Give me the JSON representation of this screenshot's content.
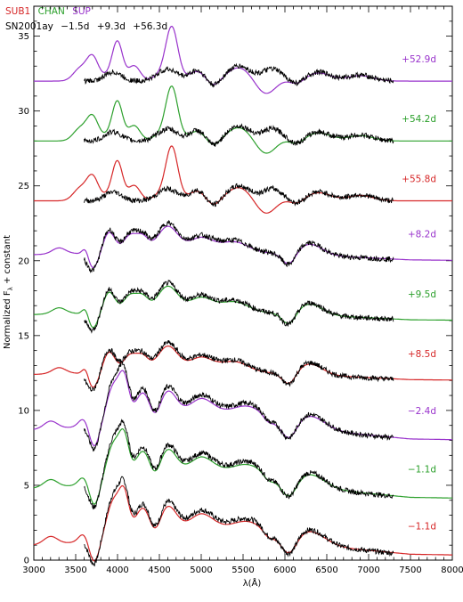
{
  "chart_data": {
    "type": "line",
    "xlabel": "λ(Å)",
    "ylabel": "Normalized F",
    "ylabel_subscript": "λ",
    "ylabel_suffix": " + constant",
    "xlim": [
      3000,
      8000
    ],
    "ylim": [
      0,
      37
    ],
    "x_ticks": [
      3000,
      3500,
      4000,
      4500,
      5000,
      5500,
      6000,
      6500,
      7000,
      7500,
      8000
    ],
    "y_ticks": [
      0,
      5,
      10,
      15,
      20,
      25,
      30,
      35
    ],
    "legend": {
      "models": [
        {
          "name": "SUB1",
          "color": "#d62728"
        },
        {
          "name": "CHAN",
          "color": "#2ca02c"
        },
        {
          "name": "SUP",
          "color": "#9933cc"
        }
      ],
      "observed": {
        "name": "SN2001ay",
        "color": "#000000",
        "epochs": [
          "−1.5d",
          "+9.3d",
          "+56.3d"
        ]
      }
    },
    "observed_range": [
      3600,
      7300
    ],
    "series": [
      {
        "label": "−1.1d",
        "model": "SUB1",
        "color": "#d62728",
        "offset": 0.8,
        "phase": "early"
      },
      {
        "label": "−1.1d",
        "model": "CHAN",
        "color": "#2ca02c",
        "offset": 4.6,
        "phase": "early"
      },
      {
        "label": "−2.4d",
        "model": "SUP",
        "color": "#9933cc",
        "offset": 8.5,
        "phase": "early"
      },
      {
        "label": "+8.5d",
        "model": "SUB1",
        "color": "#d62728",
        "offset": 12.3,
        "phase": "mid"
      },
      {
        "label": "+9.5d",
        "model": "CHAN",
        "color": "#2ca02c",
        "offset": 16.3,
        "phase": "mid"
      },
      {
        "label": "+8.2d",
        "model": "SUP",
        "color": "#9933cc",
        "offset": 20.3,
        "phase": "mid"
      },
      {
        "label": "+55.8d",
        "model": "SUB1",
        "color": "#d62728",
        "offset": 24.0,
        "phase": "late"
      },
      {
        "label": "+54.2d",
        "model": "CHAN",
        "color": "#2ca02c",
        "offset": 28.0,
        "phase": "late"
      },
      {
        "label": "+52.9d",
        "model": "SUP",
        "color": "#9933cc",
        "offset": 32.0,
        "phase": "late"
      }
    ]
  }
}
